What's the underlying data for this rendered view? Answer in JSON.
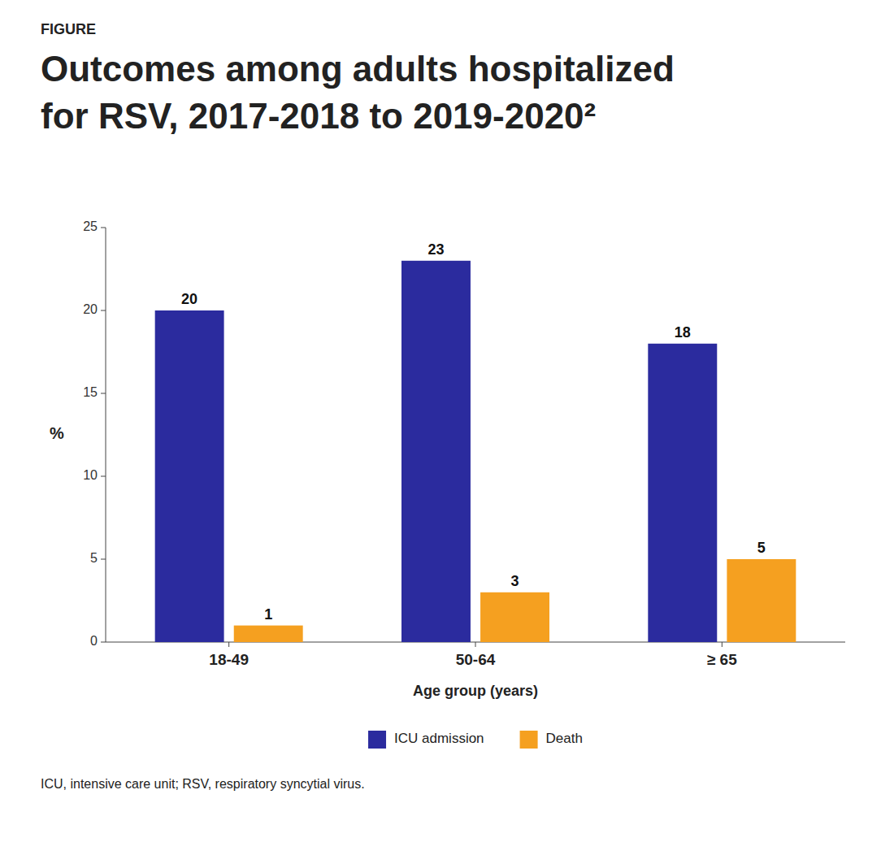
{
  "chart_data": {
    "type": "bar",
    "annotations": [
      "FIGURE",
      "ICU, intensive care unit; RSV, respiratory syncytial virus."
    ],
    "title": [
      "Outcomes among adults hospitalized",
      "for RSV, 2017-2018 to 2019-2020²"
    ],
    "categories": [
      "18-49",
      "50-64",
      "≥ 65"
    ],
    "series": [
      {
        "name": "ICU admission",
        "color": "#2b2b9e",
        "values": [
          20,
          23,
          18
        ]
      },
      {
        "name": "Death",
        "color": "#f5a020",
        "values": [
          1,
          3,
          5
        ]
      }
    ],
    "xlabel": "Age group (years)",
    "ylabel": "%",
    "ylim": [
      0,
      25
    ],
    "yticks": [
      0,
      5,
      10,
      15,
      20,
      25
    ],
    "grid": false,
    "legend": "bottom",
    "data_labels": true
  }
}
